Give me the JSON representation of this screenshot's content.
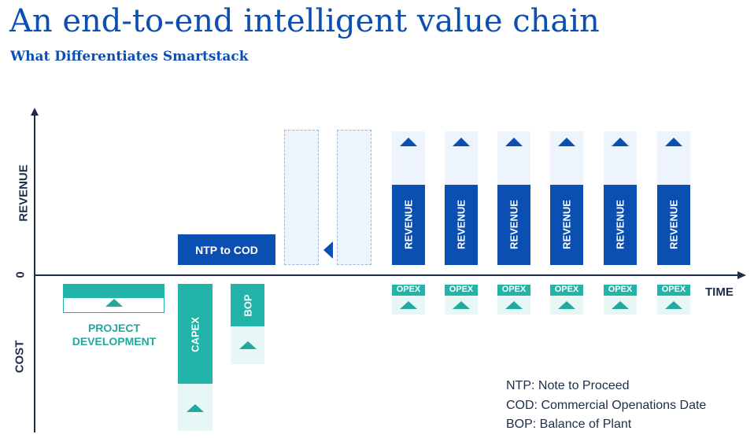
{
  "header": {
    "title": "An end-to-end intelligent value chain",
    "subtitle": "What Differentiates Smartstack"
  },
  "axes": {
    "y_top_label": "REVENUE",
    "zero_label": "0",
    "y_bottom_label": "COST",
    "x_label": "TIME"
  },
  "phases": {
    "project_development_line1": "PROJECT",
    "project_development_line2": "DEVELOPMENT",
    "capex": "CAPEX",
    "bop": "BOP",
    "ntp_to_cod": "NTP to COD"
  },
  "operating_years": [
    {
      "revenue": "REVENUE",
      "opex": "OPEX"
    },
    {
      "revenue": "REVENUE",
      "opex": "OPEX"
    },
    {
      "revenue": "REVENUE",
      "opex": "OPEX"
    },
    {
      "revenue": "REVENUE",
      "opex": "OPEX"
    },
    {
      "revenue": "REVENUE",
      "opex": "OPEX"
    },
    {
      "revenue": "REVENUE",
      "opex": "OPEX"
    }
  ],
  "legend": [
    "NTP: Note to Proceed",
    "COD: Commercial Openations Date",
    "BOP: Balance of Plant"
  ],
  "colors": {
    "brand_blue": "#0b4fb3",
    "teal": "#22b3a9",
    "axis": "#1e2d4a"
  }
}
